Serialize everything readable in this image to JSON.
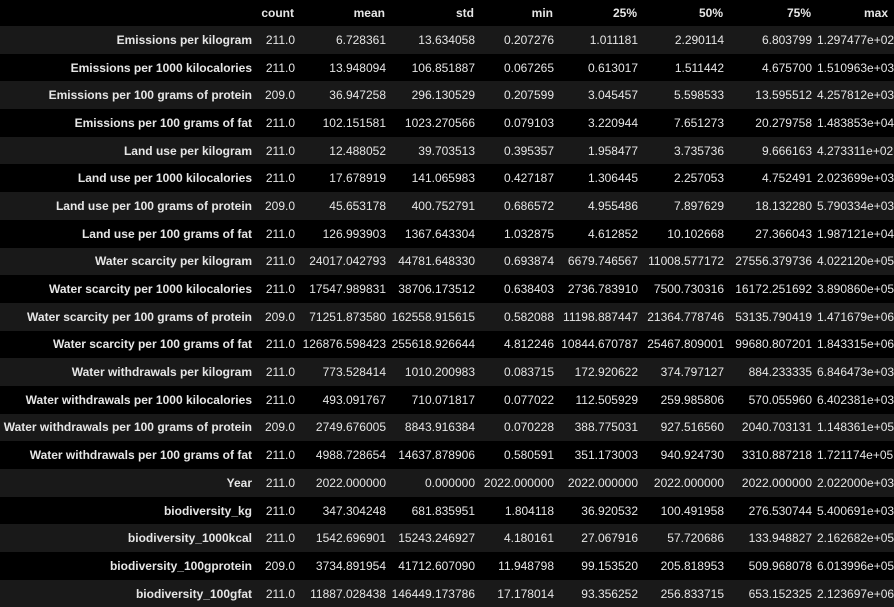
{
  "table": {
    "columns": [
      "count",
      "mean",
      "std",
      "min",
      "25%",
      "50%",
      "75%",
      "max"
    ],
    "rows": [
      {
        "label": "Emissions per kilogram",
        "values": [
          "211.0",
          "6.728361",
          "13.634058",
          "0.207276",
          "1.011181",
          "2.290114",
          "6.803799",
          "1.297477e+02"
        ]
      },
      {
        "label": "Emissions per 1000 kilocalories",
        "values": [
          "211.0",
          "13.948094",
          "106.851887",
          "0.067265",
          "0.613017",
          "1.511442",
          "4.675700",
          "1.510963e+03"
        ]
      },
      {
        "label": "Emissions per 100 grams of protein",
        "values": [
          "209.0",
          "36.947258",
          "296.130529",
          "0.207599",
          "3.045457",
          "5.598533",
          "13.595512",
          "4.257812e+03"
        ]
      },
      {
        "label": "Emissions per 100 grams of fat",
        "values": [
          "211.0",
          "102.151581",
          "1023.270566",
          "0.079103",
          "3.220944",
          "7.651273",
          "20.279758",
          "1.483853e+04"
        ]
      },
      {
        "label": "Land use per kilogram",
        "values": [
          "211.0",
          "12.488052",
          "39.703513",
          "0.395357",
          "1.958477",
          "3.735736",
          "9.666163",
          "4.273311e+02"
        ]
      },
      {
        "label": "Land use per 1000 kilocalories",
        "values": [
          "211.0",
          "17.678919",
          "141.065983",
          "0.427187",
          "1.306445",
          "2.257053",
          "4.752491",
          "2.023699e+03"
        ]
      },
      {
        "label": "Land use per 100 grams of protein",
        "values": [
          "209.0",
          "45.653178",
          "400.752791",
          "0.686572",
          "4.955486",
          "7.897629",
          "18.132280",
          "5.790334e+03"
        ]
      },
      {
        "label": "Land use per 100 grams of fat",
        "values": [
          "211.0",
          "126.993903",
          "1367.643304",
          "1.032875",
          "4.612852",
          "10.102668",
          "27.366043",
          "1.987121e+04"
        ]
      },
      {
        "label": "Water scarcity per kilogram",
        "values": [
          "211.0",
          "24017.042793",
          "44781.648330",
          "0.693874",
          "6679.746567",
          "11008.577172",
          "27556.379736",
          "4.022120e+05"
        ]
      },
      {
        "label": "Water scarcity per 1000 kilocalories",
        "values": [
          "211.0",
          "17547.989831",
          "38706.173512",
          "0.638403",
          "2736.783910",
          "7500.730316",
          "16172.251692",
          "3.890860e+05"
        ]
      },
      {
        "label": "Water scarcity per 100 grams of protein",
        "values": [
          "209.0",
          "71251.873580",
          "162558.915615",
          "0.582088",
          "11198.887447",
          "21364.778746",
          "53135.790419",
          "1.471679e+06"
        ]
      },
      {
        "label": "Water scarcity per 100 grams of fat",
        "values": [
          "211.0",
          "126876.598423",
          "255618.926644",
          "4.812246",
          "10844.670787",
          "25467.809001",
          "99680.807201",
          "1.843315e+06"
        ]
      },
      {
        "label": "Water withdrawals per kilogram",
        "values": [
          "211.0",
          "773.528414",
          "1010.200983",
          "0.083715",
          "172.920622",
          "374.797127",
          "884.233335",
          "6.846473e+03"
        ]
      },
      {
        "label": "Water withdrawals per 1000 kilocalories",
        "values": [
          "211.0",
          "493.091767",
          "710.071817",
          "0.077022",
          "112.505929",
          "259.985806",
          "570.055960",
          "6.402381e+03"
        ]
      },
      {
        "label": "Water withdrawals per 100 grams of protein",
        "values": [
          "209.0",
          "2749.676005",
          "8843.916384",
          "0.070228",
          "388.775031",
          "927.516560",
          "2040.703131",
          "1.148361e+05"
        ]
      },
      {
        "label": "Water withdrawals per 100 grams of fat",
        "values": [
          "211.0",
          "4988.728654",
          "14637.878906",
          "0.580591",
          "351.173003",
          "940.924730",
          "3310.887218",
          "1.721174e+05"
        ]
      },
      {
        "label": "Year",
        "values": [
          "211.0",
          "2022.000000",
          "0.000000",
          "2022.000000",
          "2022.000000",
          "2022.000000",
          "2022.000000",
          "2.022000e+03"
        ]
      },
      {
        "label": "biodiversity_kg",
        "values": [
          "211.0",
          "347.304248",
          "681.835951",
          "1.804118",
          "36.920532",
          "100.491958",
          "276.530744",
          "5.400691e+03"
        ]
      },
      {
        "label": "biodiversity_1000kcal",
        "values": [
          "211.0",
          "1542.696901",
          "15243.246927",
          "4.180161",
          "27.067916",
          "57.720686",
          "133.948827",
          "2.162682e+05"
        ]
      },
      {
        "label": "biodiversity_100gprotein",
        "values": [
          "209.0",
          "3734.891954",
          "41712.607090",
          "11.948798",
          "99.153520",
          "205.818953",
          "509.968078",
          "6.013996e+05"
        ]
      },
      {
        "label": "biodiversity_100gfat",
        "values": [
          "211.0",
          "11887.028438",
          "146449.173786",
          "17.178014",
          "93.356252",
          "256.833715",
          "653.152325",
          "2.123697e+06"
        ]
      }
    ]
  }
}
